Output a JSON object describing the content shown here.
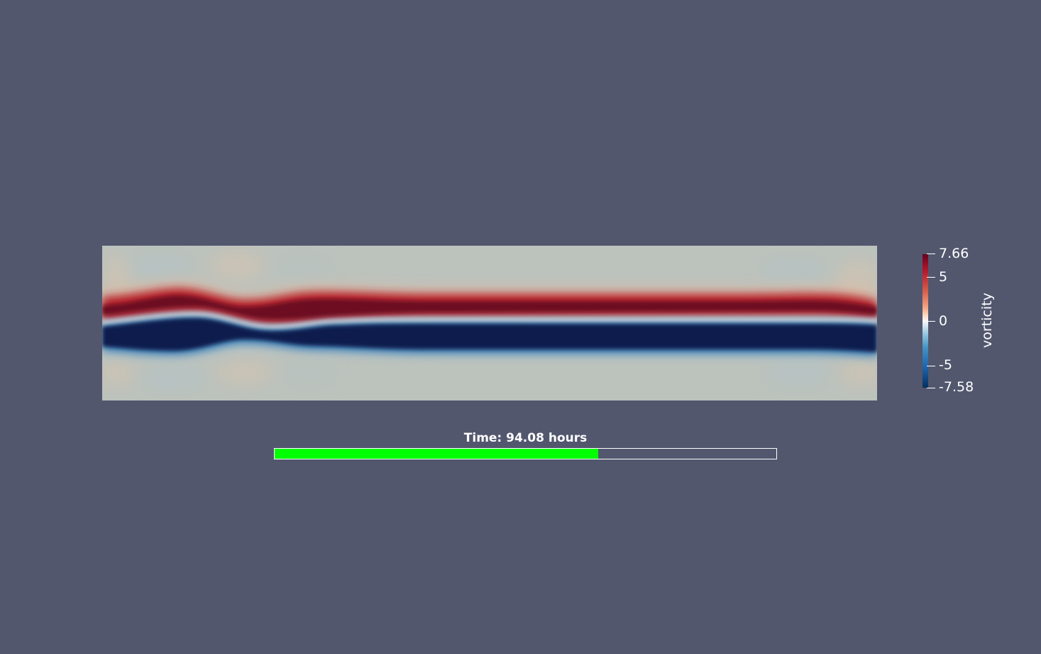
{
  "view": {
    "background_color": "#52576e",
    "field_name": "vorticity"
  },
  "colorbar": {
    "title": "vorticity",
    "max_label": "7.66",
    "min_label": "-7.58",
    "ticks": [
      {
        "value": 7.66,
        "label": "7.66"
      },
      {
        "value": 5,
        "label": "5"
      },
      {
        "value": 0,
        "label": "0"
      },
      {
        "value": -5,
        "label": "-5"
      },
      {
        "value": -7.58,
        "label": "-7.58"
      }
    ],
    "range": [
      -7.58,
      7.66
    ],
    "colormap": "blue-white-red diverging"
  },
  "time": {
    "label": "Time: 94.08 hours",
    "progress_fraction": 0.645,
    "fill_color": "#00ff00"
  }
}
